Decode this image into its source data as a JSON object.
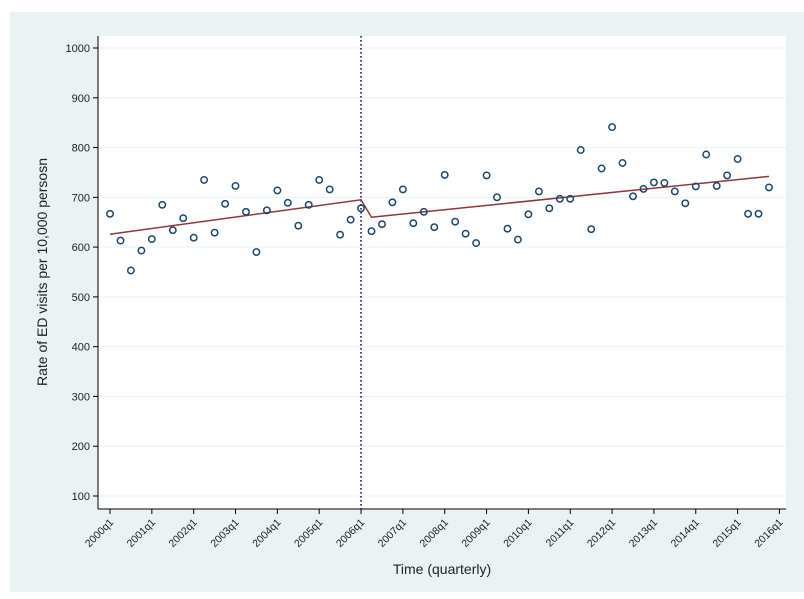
{
  "colors": {
    "background_outer": "#eaf2f3",
    "plot_background": "#ffffff",
    "marker_stroke": "#1a476f",
    "fit_line": "#90353b",
    "cut_line": "#1a1a6e",
    "axis": "#000000"
  },
  "chart_data": {
    "type": "scatter",
    "xlabel": "Time (quarterly)",
    "ylabel": "Rate of ED visits per 10,000 persosn",
    "ylim": [
      100,
      1000
    ],
    "yticks": [
      100,
      200,
      300,
      400,
      500,
      600,
      700,
      800,
      900,
      1000
    ],
    "xticks": [
      "2000q1",
      "2001q1",
      "2002q1",
      "2003q1",
      "2004q1",
      "2005q1",
      "2006q1",
      "2007q1",
      "2008q1",
      "2009q1",
      "2010q1",
      "2011q1",
      "2012q1",
      "2013q1",
      "2014q1",
      "2015q1",
      "2016q1"
    ],
    "grid": "horizontal",
    "legend": "none",
    "intervention": "2006q1",
    "series": [
      {
        "marker": "hollow-circle",
        "x": [
          "2000q1",
          "2000q2",
          "2000q3",
          "2000q4",
          "2001q1",
          "2001q2",
          "2001q3",
          "2001q4",
          "2002q1",
          "2002q2",
          "2002q3",
          "2002q4",
          "2003q1",
          "2003q2",
          "2003q3",
          "2003q4",
          "2004q1",
          "2004q2",
          "2004q3",
          "2004q4",
          "2005q1",
          "2005q2",
          "2005q3",
          "2005q4",
          "2006q1",
          "2006q2",
          "2006q3",
          "2006q4",
          "2007q1",
          "2007q2",
          "2007q3",
          "2007q4",
          "2008q1",
          "2008q2",
          "2008q3",
          "2008q4",
          "2009q1",
          "2009q2",
          "2009q3",
          "2009q4",
          "2010q1",
          "2010q2",
          "2010q3",
          "2010q4",
          "2011q1",
          "2011q2",
          "2011q3",
          "2011q4",
          "2012q1",
          "2012q2",
          "2012q3",
          "2012q4",
          "2013q1",
          "2013q2",
          "2013q3",
          "2013q4",
          "2014q1",
          "2014q2",
          "2014q3",
          "2014q4",
          "2015q1",
          "2015q2",
          "2015q3",
          "2015q4"
        ],
        "values": [
          667,
          613,
          553,
          593,
          616,
          685,
          634,
          658,
          619,
          735,
          629,
          687,
          723,
          671,
          590,
          674,
          714,
          689,
          643,
          685,
          735,
          716,
          625,
          655,
          678,
          632,
          646,
          690,
          716,
          648,
          671,
          640,
          745,
          651,
          627,
          608,
          744,
          700,
          637,
          615,
          666,
          712,
          678,
          697,
          697,
          795,
          636,
          758,
          841,
          769,
          702,
          717,
          730,
          729,
          712,
          688,
          722,
          786,
          723,
          744,
          777,
          667,
          667,
          720
        ]
      }
    ],
    "fit_segments": [
      {
        "x": [
          "2000q1",
          "2006q1"
        ],
        "y": [
          626,
          695
        ]
      },
      {
        "x": [
          "2006q2",
          "2015q4"
        ],
        "y": [
          660,
          742
        ]
      }
    ]
  }
}
